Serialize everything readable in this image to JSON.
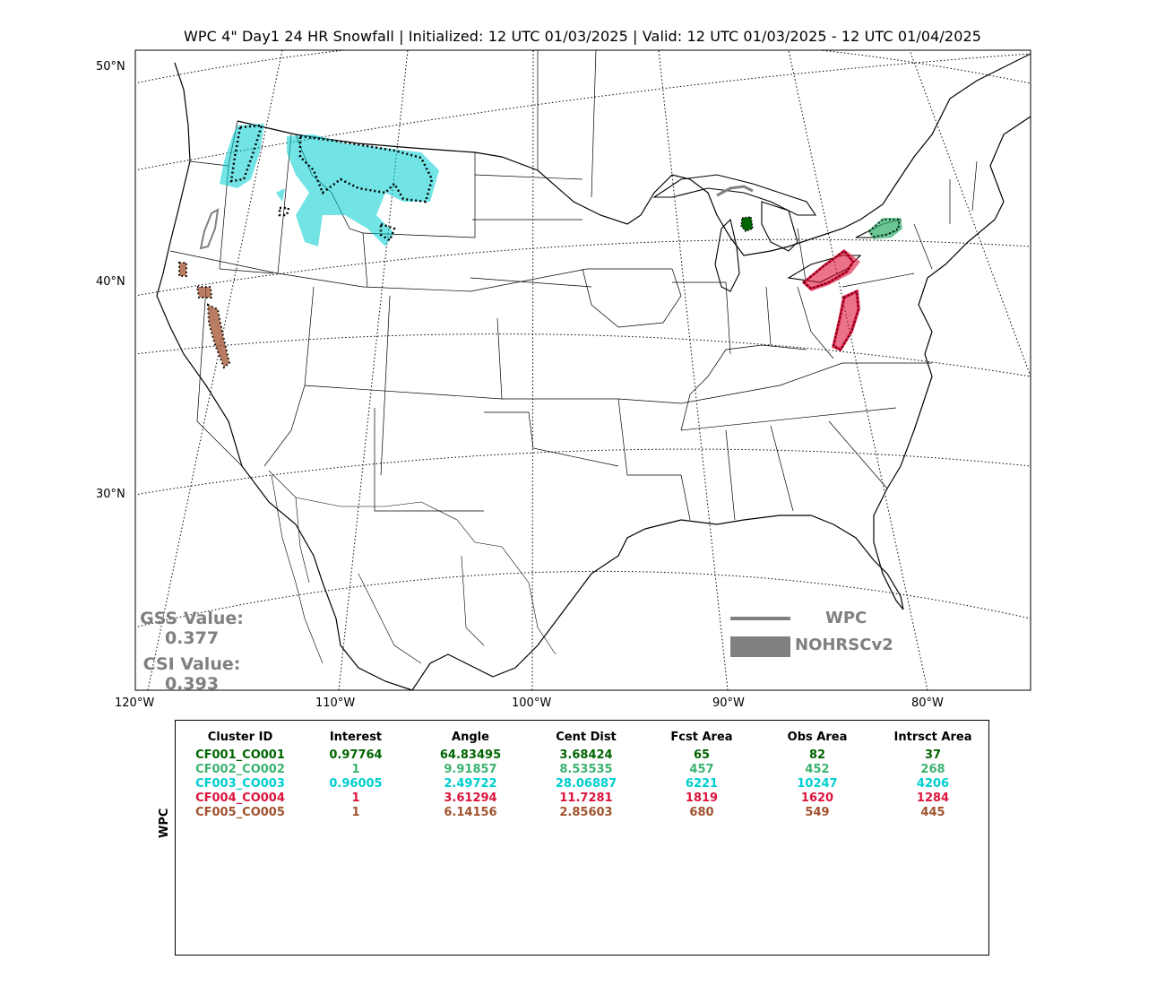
{
  "title": "WPC 4\" Day1 24 HR Snowfall | Initialized: 12 UTC 01/03/2025 | Valid: 12 UTC 01/03/2025 - 12 UTC 01/04/2025",
  "map": {
    "lat_labels": [
      "50°N",
      "40°N",
      "30°N"
    ],
    "lon_labels": [
      "120°W",
      "110°W",
      "100°W",
      "90°W",
      "80°W"
    ],
    "colors": {
      "CF001": "#006400",
      "CF002": "#3cb371",
      "CF003": "#00ced1",
      "CF004": "#dc143c",
      "CF005": "#a0522d",
      "wpc_line": "#808080"
    }
  },
  "scores": {
    "gss_label": "GSS Value:",
    "gss_value": "0.377",
    "csi_label": "CSI Value:",
    "csi_value": "0.393"
  },
  "legend": {
    "forecast": "WPC",
    "observed": "NOHRSCv2"
  },
  "table": {
    "side_label": "WPC",
    "headers": [
      "Cluster ID",
      "Interest",
      "Angle",
      "Cent Dist",
      "Fcst Area",
      "Obs Area",
      "Intrsct Area"
    ],
    "rows": [
      {
        "cells": [
          "CF001_CO001",
          "0.97764",
          "64.83495",
          "3.68424",
          "65",
          "82",
          "37"
        ],
        "color": "#006400"
      },
      {
        "cells": [
          "CF002_CO002",
          "1",
          "9.91857",
          "8.53535",
          "457",
          "452",
          "268"
        ],
        "color": "#3cb371"
      },
      {
        "cells": [
          "CF003_CO003",
          "0.96005",
          "2.49722",
          "28.06887",
          "6221",
          "10247",
          "4206"
        ],
        "color": "#00ced1"
      },
      {
        "cells": [
          "CF004_CO004",
          "1",
          "3.61294",
          "11.7281",
          "1819",
          "1620",
          "1284"
        ],
        "color": "#dc143c"
      },
      {
        "cells": [
          "CF005_CO005",
          "1",
          "6.14156",
          "2.85603",
          "680",
          "549",
          "445"
        ],
        "color": "#a0522d"
      }
    ]
  }
}
